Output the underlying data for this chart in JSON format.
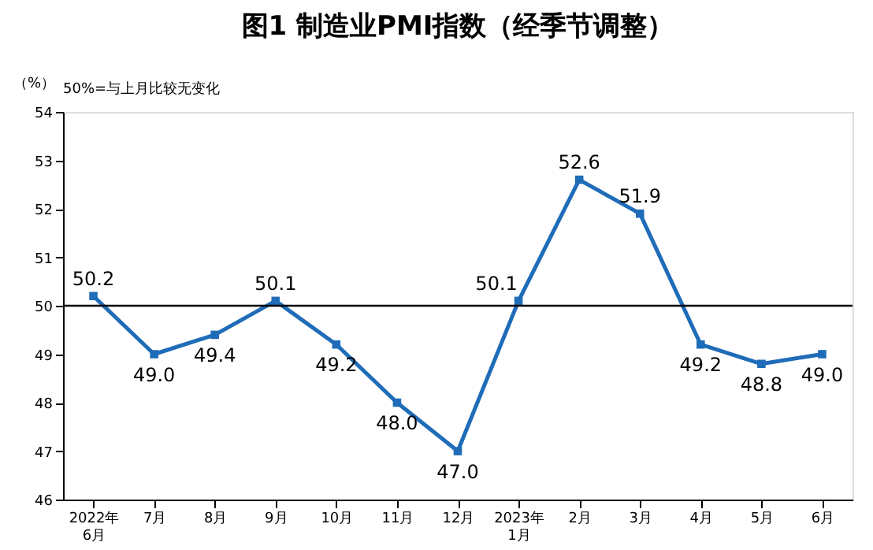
{
  "chart_data": {
    "type": "line",
    "title": "图1 制造业PMI指数（经季节调整）",
    "ylabel": "（%）",
    "annotations": [
      "50%=与上月比较无变化"
    ],
    "categories": [
      "2022年\n6月",
      "7月",
      "8月",
      "9月",
      "10月",
      "11月",
      "12月",
      "2023年\n1月",
      "2月",
      "3月",
      "4月",
      "5月",
      "6月"
    ],
    "series": [
      {
        "color": "#1f6cb8",
        "values": [
          50.2,
          49.0,
          49.4,
          50.1,
          49.2,
          48.0,
          47.0,
          50.1,
          52.6,
          51.9,
          49.2,
          48.8,
          49.0
        ],
        "value_labels": [
          "50.2",
          "49.0",
          "49.4",
          "50.1",
          "49.2",
          "48.0",
          "47.0",
          "50.1",
          "52.6",
          "51.9",
          "49.2",
          "48.8",
          "49.0"
        ]
      }
    ],
    "ylim": [
      46,
      54
    ],
    "yticks": [
      46,
      47,
      48,
      49,
      50,
      51,
      52,
      53,
      54
    ],
    "ref_lines": [
      {
        "axis": "y",
        "value": 50,
        "color": "#000000"
      }
    ],
    "marker": "square",
    "line_style": "solid",
    "grid": false
  }
}
